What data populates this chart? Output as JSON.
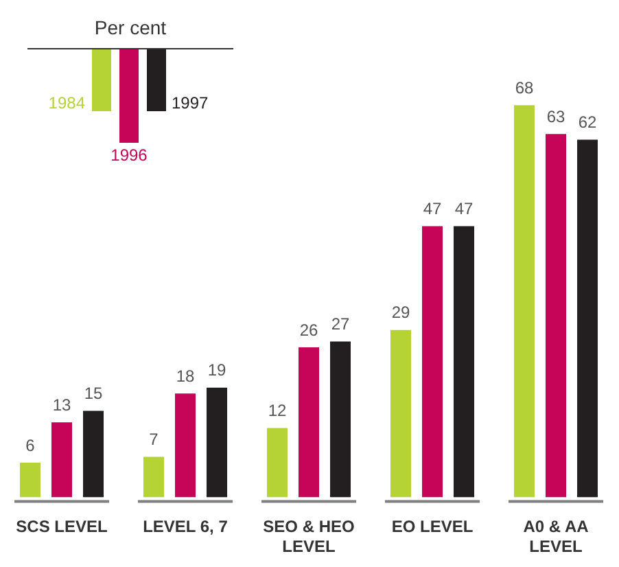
{
  "chart_data": {
    "type": "bar",
    "categories": [
      "SCS LEVEL",
      "LEVEL 6, 7",
      "SEO & HEO LEVEL",
      "EO LEVEL",
      "A0 & AA LEVEL"
    ],
    "series": [
      {
        "name": "1984",
        "color": "#b5d334",
        "values": [
          6,
          7,
          12,
          29,
          68
        ]
      },
      {
        "name": "1996",
        "color": "#c60458",
        "values": [
          13,
          18,
          26,
          47,
          63
        ]
      },
      {
        "name": "1997",
        "color": "#231f20",
        "values": [
          15,
          19,
          27,
          47,
          62
        ]
      }
    ],
    "legend_title": "Per cent",
    "legend": "top left",
    "data_labels": true,
    "tick_labels": "x"
  }
}
